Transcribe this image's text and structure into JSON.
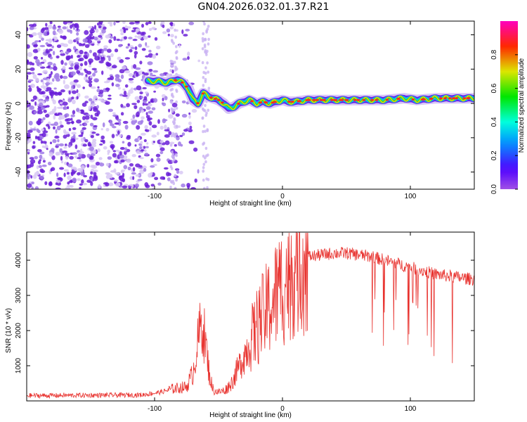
{
  "title": "GN04.2026.032.01.37.R21",
  "colors": {
    "line": "#e8322e",
    "axis": "#000000",
    "heat_low": "#8a2be2"
  },
  "chart_data": [
    {
      "type": "heatmap",
      "xlabel": "Height of straight line (km)",
      "ylabel": "Frequency (Hz)",
      "xlim": [
        -200,
        150
      ],
      "ylim": [
        -50,
        48
      ],
      "x_ticks": [
        -100,
        0,
        100
      ],
      "y_ticks": [
        -40,
        -20,
        0,
        20,
        40
      ],
      "x_tick_labels": [
        "-100",
        "0",
        "100"
      ],
      "y_tick_labels": [
        "-40",
        "-20",
        "0",
        "20",
        "40"
      ],
      "colorbar": {
        "label": "Normalized spectral amplitude",
        "range": [
          0,
          1
        ],
        "ticks": [
          "0.0",
          "0.2",
          "0.4",
          "0.6",
          "0.8"
        ],
        "tick_values": [
          0.0,
          0.2,
          0.4,
          0.6,
          0.8
        ]
      },
      "ridge": {
        "x": [
          -105,
          -98,
          -90,
          -82,
          -78,
          -74,
          -70,
          -66,
          -62,
          -58,
          -54,
          -50,
          -46,
          -42,
          -38,
          -34,
          -30,
          -26,
          -20,
          -15,
          -10,
          -5,
          0,
          5,
          10,
          20,
          40,
          60,
          80,
          95,
          105,
          120,
          135,
          150
        ],
        "y": [
          13,
          13,
          12,
          14,
          12,
          9,
          2,
          0,
          6,
          4,
          3,
          2,
          0,
          -3,
          -2,
          0,
          1,
          2,
          0,
          1,
          0,
          1,
          2,
          1,
          1,
          2,
          2,
          2,
          2,
          3,
          2,
          3,
          3,
          3
        ]
      },
      "noise_extent_x": [
        -200,
        -75
      ],
      "sparse_columns_x": [
        -85,
        -60
      ]
    },
    {
      "type": "line",
      "xlabel": "Height of straight line (km)",
      "ylabel": "SNR (10 * v/v)",
      "xlim": [
        -200,
        150
      ],
      "ylim": [
        0,
        4800
      ],
      "x_ticks": [
        -100,
        0,
        100
      ],
      "y_ticks": [
        1000,
        2000,
        3000,
        4000
      ],
      "x_tick_labels": [
        "-100",
        "0",
        "100"
      ],
      "y_tick_labels": [
        "1000",
        "2000",
        "3000",
        "4000"
      ],
      "series": [
        {
          "name": "SNR",
          "x": [
            -200,
            -150,
            -110,
            -95,
            -85,
            -75,
            -70,
            -66,
            -63,
            -60,
            -57,
            -54,
            -50,
            -45,
            -40,
            -35,
            -30,
            -25,
            -20,
            -15,
            -10,
            -5,
            0,
            5,
            10,
            15,
            20,
            30,
            40,
            50,
            60,
            70,
            80,
            90,
            100,
            110,
            120,
            130,
            140,
            150
          ],
          "y": [
            150,
            160,
            170,
            250,
            350,
            400,
            800,
            1700,
            2300,
            1600,
            700,
            300,
            250,
            300,
            500,
            900,
            1300,
            1700,
            2100,
            2400,
            2700,
            3000,
            3300,
            3600,
            3900,
            4050,
            4100,
            4150,
            4200,
            4200,
            4150,
            4100,
            4000,
            3900,
            3800,
            3700,
            3600,
            3550,
            3500,
            3450
          ]
        }
      ]
    }
  ]
}
